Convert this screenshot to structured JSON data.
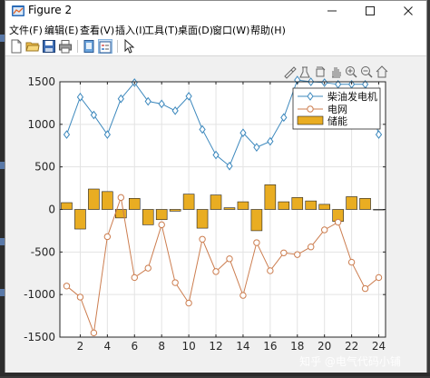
{
  "window": {
    "title": "Figure 2"
  },
  "menu": [
    {
      "label": "文件(F)"
    },
    {
      "label": "编辑(E)"
    },
    {
      "label": "查看(V)"
    },
    {
      "label": "插入(I)"
    },
    {
      "label": "工具(T)"
    },
    {
      "label": "桌面(D)"
    },
    {
      "label": "窗口(W)"
    },
    {
      "label": "帮助(H)"
    }
  ],
  "toolbar": {
    "icons": [
      "new-figure-icon",
      "open-file-icon",
      "save-icon",
      "print-icon",
      "dock-icon",
      "legend-toggle-icon",
      "pointer-icon"
    ]
  },
  "axes_toolbar": {
    "icons": [
      "brush-icon",
      "data-tip-icon",
      "rotate-icon",
      "pan-icon",
      "zoom-in-icon",
      "zoom-out-icon",
      "home-icon"
    ]
  },
  "watermark": "知乎 @电气代码小铺",
  "colors": {
    "diesel": "#3c88bd",
    "grid": "#cc7d4f",
    "storage": "#e9ad22",
    "axes_bg": "#ffffff",
    "figure_bg": "#f0f0f0",
    "gridline": "#e3e3e3"
  },
  "chart_data": {
    "type": "bar",
    "x": [
      1,
      2,
      3,
      4,
      5,
      6,
      7,
      8,
      9,
      10,
      11,
      12,
      13,
      14,
      15,
      16,
      17,
      18,
      19,
      20,
      21,
      22,
      23,
      24
    ],
    "xticks": [
      2,
      4,
      6,
      8,
      10,
      12,
      14,
      16,
      18,
      20,
      22,
      24
    ],
    "xlim": [
      0.5,
      24.5
    ],
    "ylim": [
      -1500,
      1500
    ],
    "yticks": [
      -1500,
      -1000,
      -500,
      0,
      500,
      1000,
      1500
    ],
    "grid": true,
    "legend_location": "top-right",
    "series": [
      {
        "name": "柴油发电机",
        "kind": "line",
        "marker": "diamond",
        "values": [
          880,
          1320,
          1110,
          880,
          1300,
          1490,
          1270,
          1240,
          1160,
          1330,
          940,
          640,
          510,
          900,
          730,
          800,
          1080,
          1520,
          1500,
          1490,
          1470,
          1470,
          1470,
          880
        ]
      },
      {
        "name": "电网",
        "kind": "line",
        "marker": "circle",
        "values": [
          -900,
          -1030,
          -1450,
          -320,
          140,
          -800,
          -690,
          -180,
          -860,
          -1100,
          -350,
          -730,
          -580,
          -1010,
          -390,
          -720,
          -510,
          -530,
          -440,
          -240,
          -150,
          -620,
          -930,
          -800
        ]
      },
      {
        "name": "储能",
        "kind": "bar",
        "values": [
          80,
          -230,
          240,
          210,
          -100,
          130,
          -180,
          -120,
          -20,
          180,
          -220,
          170,
          20,
          90,
          -250,
          290,
          90,
          140,
          100,
          60,
          -140,
          150,
          130,
          0
        ]
      }
    ]
  }
}
